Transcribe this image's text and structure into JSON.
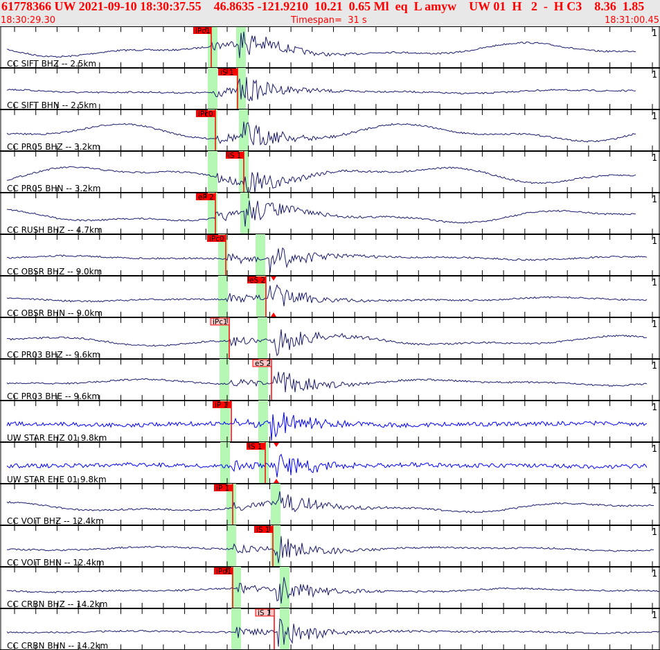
{
  "header": {
    "title": "61778366 UW 2021-09-10 18:30:37.55    46.8635 -121.9210  10.21  0.65 Ml  eq  L amyw    UW 01  H   2  -  H C3    8.36  1.85",
    "start_time": "18:30:29.30",
    "timespan": "Timespan=  31 s",
    "end_time": "18:31:00.45"
  },
  "colors": {
    "header_text": "#ff0000",
    "trace": "#1a1a6e",
    "trace_highlight": "#0000ff",
    "pick": "#ff0000",
    "pick_light": "#f8c8c8",
    "window": "#b4f8b4"
  },
  "channels": [
    {
      "label": "CC SIFT BHZ -- 2.5km",
      "pick": "iPc1",
      "amp": "1"
    },
    {
      "label": "CC SIFT BHN -- 2.5km",
      "pick": "iS 1",
      "amp": "1"
    },
    {
      "label": "CC PR05 BHZ -- 3.2km",
      "pick": "iPc0",
      "amp": "1"
    },
    {
      "label": "CC PR05 BHN -- 3.2km",
      "pick": "iS 1",
      "amp": "1"
    },
    {
      "label": "CC RUSH BHZ -- 4.7km",
      "pick": "eP 2",
      "amp": "1"
    },
    {
      "label": "CC OBSR BHZ -- 9.0km",
      "pick": "iPc0",
      "amp": "1"
    },
    {
      "label": "CC OBSR BHN -- 9.0km",
      "pick": "eS 2",
      "amp": "1"
    },
    {
      "label": "CC PR03 BHZ -- 9.6km",
      "pick": "iPc1",
      "amp": "1"
    },
    {
      "label": "CC PR03 BHE -- 9.6km",
      "pick": "eS 2",
      "amp": "1"
    },
    {
      "label": "UW STAR EHZ 01 9.8km",
      "pick": "iP 1",
      "amp": "1"
    },
    {
      "label": "UW STAR EHE 01 9.8km",
      "pick": "iS 1",
      "amp": "1"
    },
    {
      "label": "CC VOIT BHZ -- 12.4km",
      "pick": "iP 1",
      "amp": "1"
    },
    {
      "label": "CC VOIT BHN -- 12.4km",
      "pick": "iS 1",
      "amp": "1"
    },
    {
      "label": "CC CRBN BHZ -- 14.2km",
      "pick": "iPd1",
      "amp": "1"
    },
    {
      "label": "CC CRBN BHN -- 14.2km",
      "pick": "iS 1",
      "amp": "1"
    }
  ]
}
